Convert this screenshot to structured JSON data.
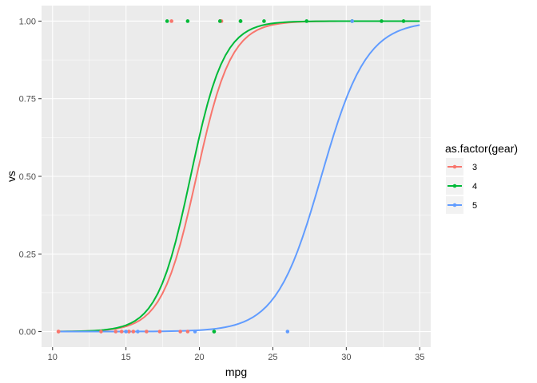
{
  "chart_data": {
    "type": "scatter",
    "xlabel": "mpg",
    "ylabel": "vs",
    "xlim": [
      9.25,
      35.75
    ],
    "ylim": [
      -0.05,
      1.05
    ],
    "x_ticks": [
      10,
      15,
      20,
      25,
      30,
      35
    ],
    "x_tick_labels": [
      "10",
      "15",
      "20",
      "25",
      "30",
      "35"
    ],
    "y_ticks": [
      0,
      0.25,
      0.5,
      0.75,
      1
    ],
    "y_tick_labels": [
      "0.00",
      "0.25",
      "0.50",
      "0.75",
      "1.00"
    ],
    "grid": true,
    "legend": {
      "title": "as.factor(gear)",
      "position": "right",
      "entries": [
        "3",
        "4",
        "5"
      ]
    },
    "colors": {
      "3": "#F8766D",
      "4": "#00BA38",
      "5": "#619CFF"
    },
    "series": [
      {
        "name": "3",
        "color": "#F8766D",
        "points": [
          [
            10.4,
            0
          ],
          [
            10.4,
            0
          ],
          [
            13.3,
            0
          ],
          [
            14.3,
            0
          ],
          [
            14.7,
            0
          ],
          [
            15.2,
            0
          ],
          [
            15.2,
            0
          ],
          [
            15.5,
            0
          ],
          [
            16.4,
            0
          ],
          [
            17.3,
            0
          ],
          [
            18.7,
            0
          ],
          [
            19.2,
            0
          ],
          [
            18.1,
            1
          ],
          [
            21.4,
            1
          ],
          [
            21.5,
            1
          ]
        ],
        "fit": {
          "x_min": 10.4,
          "x_max": 35,
          "midpoint": 19.8,
          "slope": 0.85
        }
      },
      {
        "name": "4",
        "color": "#00BA38",
        "points": [
          [
            21.0,
            0
          ],
          [
            21.0,
            0
          ],
          [
            17.8,
            1
          ],
          [
            19.2,
            1
          ],
          [
            21.4,
            1
          ],
          [
            22.8,
            1
          ],
          [
            24.4,
            1
          ],
          [
            22.8,
            1
          ],
          [
            27.3,
            1
          ],
          [
            30.4,
            1
          ],
          [
            32.4,
            1
          ],
          [
            33.9,
            1
          ]
        ],
        "fit": {
          "x_min": 10.4,
          "x_max": 35,
          "midpoint": 19.4,
          "slope": 0.88
        }
      },
      {
        "name": "5",
        "color": "#619CFF",
        "points": [
          [
            15.0,
            0
          ],
          [
            15.8,
            0
          ],
          [
            19.7,
            0
          ],
          [
            26.0,
            0
          ],
          [
            30.4,
            1
          ]
        ],
        "fit": {
          "x_min": 10.4,
          "x_max": 35,
          "midpoint": 28.3,
          "slope": 0.65
        }
      }
    ]
  }
}
